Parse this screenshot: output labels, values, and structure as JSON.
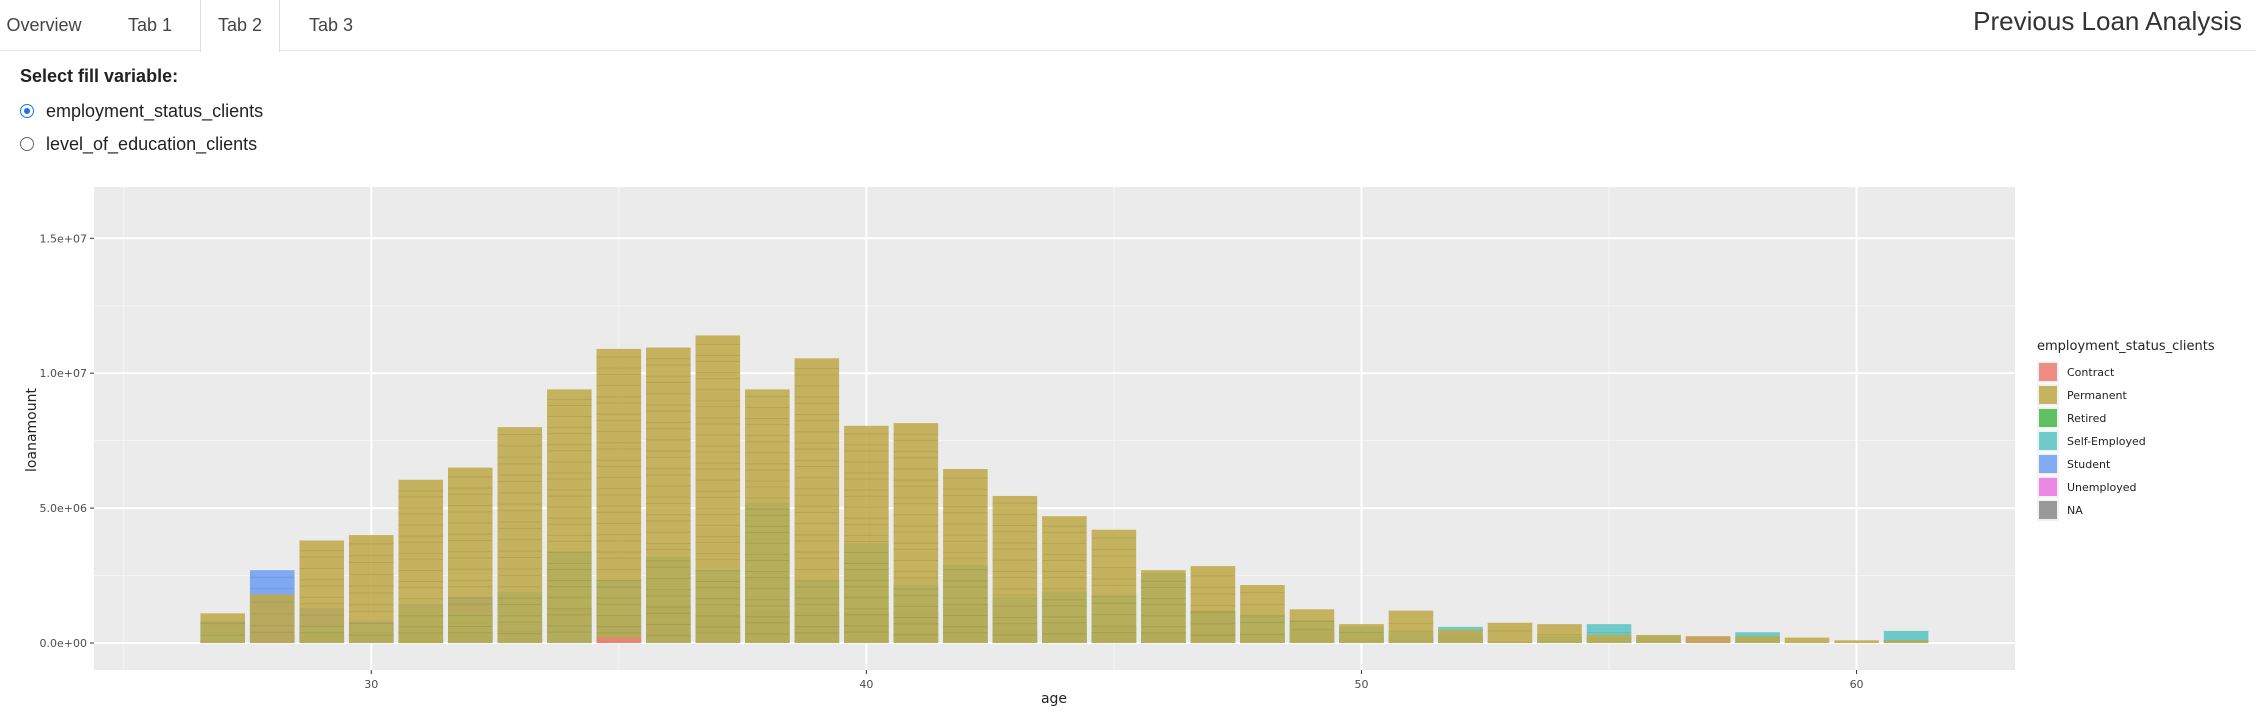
{
  "tabs": [
    {
      "label": "Overview",
      "active": false
    },
    {
      "label": "Tab 1",
      "active": false
    },
    {
      "label": "Tab 2",
      "active": true
    },
    {
      "label": "Tab 3",
      "active": false
    }
  ],
  "app_title": "Previous Loan Analysis",
  "fill_control": {
    "label": "Select fill variable:",
    "options": [
      "employment_status_clients",
      "level_of_education_clients"
    ],
    "selected": "employment_status_clients"
  },
  "chart_data": {
    "type": "bar",
    "stacked": true,
    "xlabel": "age",
    "ylabel": "loanamount",
    "x": [
      27,
      28,
      29,
      30,
      31,
      32,
      33,
      34,
      35,
      36,
      37,
      38,
      39,
      40,
      41,
      42,
      43,
      44,
      45,
      46,
      47,
      48,
      49,
      50,
      51,
      52,
      53,
      54,
      55,
      56,
      57,
      58,
      59,
      60,
      61
    ],
    "xlim": [
      24.4,
      63.2
    ],
    "ylim": [
      -1000000,
      16900000
    ],
    "xticks": [
      30,
      40,
      50,
      60
    ],
    "yticks": [
      0,
      5000000,
      10000000,
      15000000
    ],
    "ytick_labels": [
      "0.0e+00",
      "5.0e+06",
      "1.0e+07",
      "1.5e+07"
    ],
    "grid": true,
    "legend_title": "employment_status_clients",
    "legend_position": "right",
    "series": [
      {
        "name": "NA",
        "color": "#8c8c8c",
        "values": [
          150000,
          250000,
          350000,
          350000,
          500000,
          500000,
          550000,
          1300000,
          1000000,
          1400000,
          1000000,
          1200000,
          1150000,
          1150000,
          1150000,
          1400000,
          500000,
          700000,
          600000,
          400000,
          1200000,
          350000,
          350000,
          200000,
          200000,
          200000,
          50000,
          50000,
          50000,
          30000,
          30000,
          30000,
          20000,
          10000,
          100000
        ]
      },
      {
        "name": "Unemployed",
        "color": "#ec78e3",
        "values": [
          100000,
          500000,
          350000,
          600000,
          50000,
          200000,
          150000,
          0,
          350000,
          0,
          400000,
          250000,
          0,
          0,
          0,
          150000,
          0,
          0,
          0,
          0,
          0,
          0,
          0,
          0,
          0,
          300000,
          0,
          0,
          0,
          0,
          250000,
          0,
          0,
          0,
          0
        ]
      },
      {
        "name": "Student",
        "color": "#6f9ff0",
        "values": [
          800000,
          2700000,
          1300000,
          800000,
          1400000,
          1700000,
          700000,
          900000,
          0,
          400000,
          300000,
          0,
          0,
          0,
          0,
          0,
          0,
          0,
          0,
          0,
          0,
          0,
          0,
          0,
          0,
          0,
          0,
          0,
          0,
          0,
          0,
          0,
          0,
          0,
          0
        ]
      },
      {
        "name": "Self-Employed",
        "color": "#5cc4c4",
        "values": [
          600000,
          0,
          600000,
          700000,
          1300000,
          1100000,
          1900000,
          3400000,
          2350000,
          3200000,
          2700000,
          5200000,
          2300000,
          3700000,
          2150000,
          2900000,
          1700000,
          1900000,
          1800000,
          2600000,
          1150000,
          1050000,
          850000,
          600000,
          400000,
          600000,
          0,
          250000,
          700000,
          250000,
          0,
          400000,
          0,
          0,
          450000
        ]
      },
      {
        "name": "Retired",
        "color": "#4cb84c",
        "values": [
          0,
          0,
          0,
          0,
          100000,
          0,
          0,
          0,
          0,
          0,
          0,
          0,
          0,
          0,
          0,
          0,
          0,
          0,
          0,
          0,
          0,
          0,
          0,
          0,
          0,
          0,
          0,
          0,
          0,
          0,
          0,
          0,
          0,
          0,
          0
        ]
      },
      {
        "name": "Permanent",
        "color": "#bfaa4a",
        "values": [
          1100000,
          1800000,
          3800000,
          4000000,
          6050000,
          6500000,
          8000000,
          9400000,
          10900000,
          10950000,
          11400000,
          9400000,
          10550000,
          8050000,
          8150000,
          6450000,
          5450000,
          4700000,
          4200000,
          2700000,
          2850000,
          2150000,
          1250000,
          700000,
          1200000,
          500000,
          750000,
          700000,
          300000,
          300000,
          250000,
          250000,
          200000,
          100000,
          100000
        ]
      },
      {
        "name": "Contract",
        "color": "#ee7d74",
        "values": [
          0,
          0,
          0,
          0,
          0,
          0,
          0,
          0,
          200000,
          0,
          0,
          0,
          0,
          0,
          0,
          0,
          0,
          0,
          0,
          0,
          0,
          0,
          0,
          0,
          0,
          0,
          0,
          0,
          0,
          0,
          0,
          0,
          0,
          0,
          0
        ]
      }
    ],
    "legend_order": [
      "Contract",
      "Permanent",
      "Retired",
      "Self-Employed",
      "Student",
      "Unemployed",
      "NA"
    ]
  }
}
